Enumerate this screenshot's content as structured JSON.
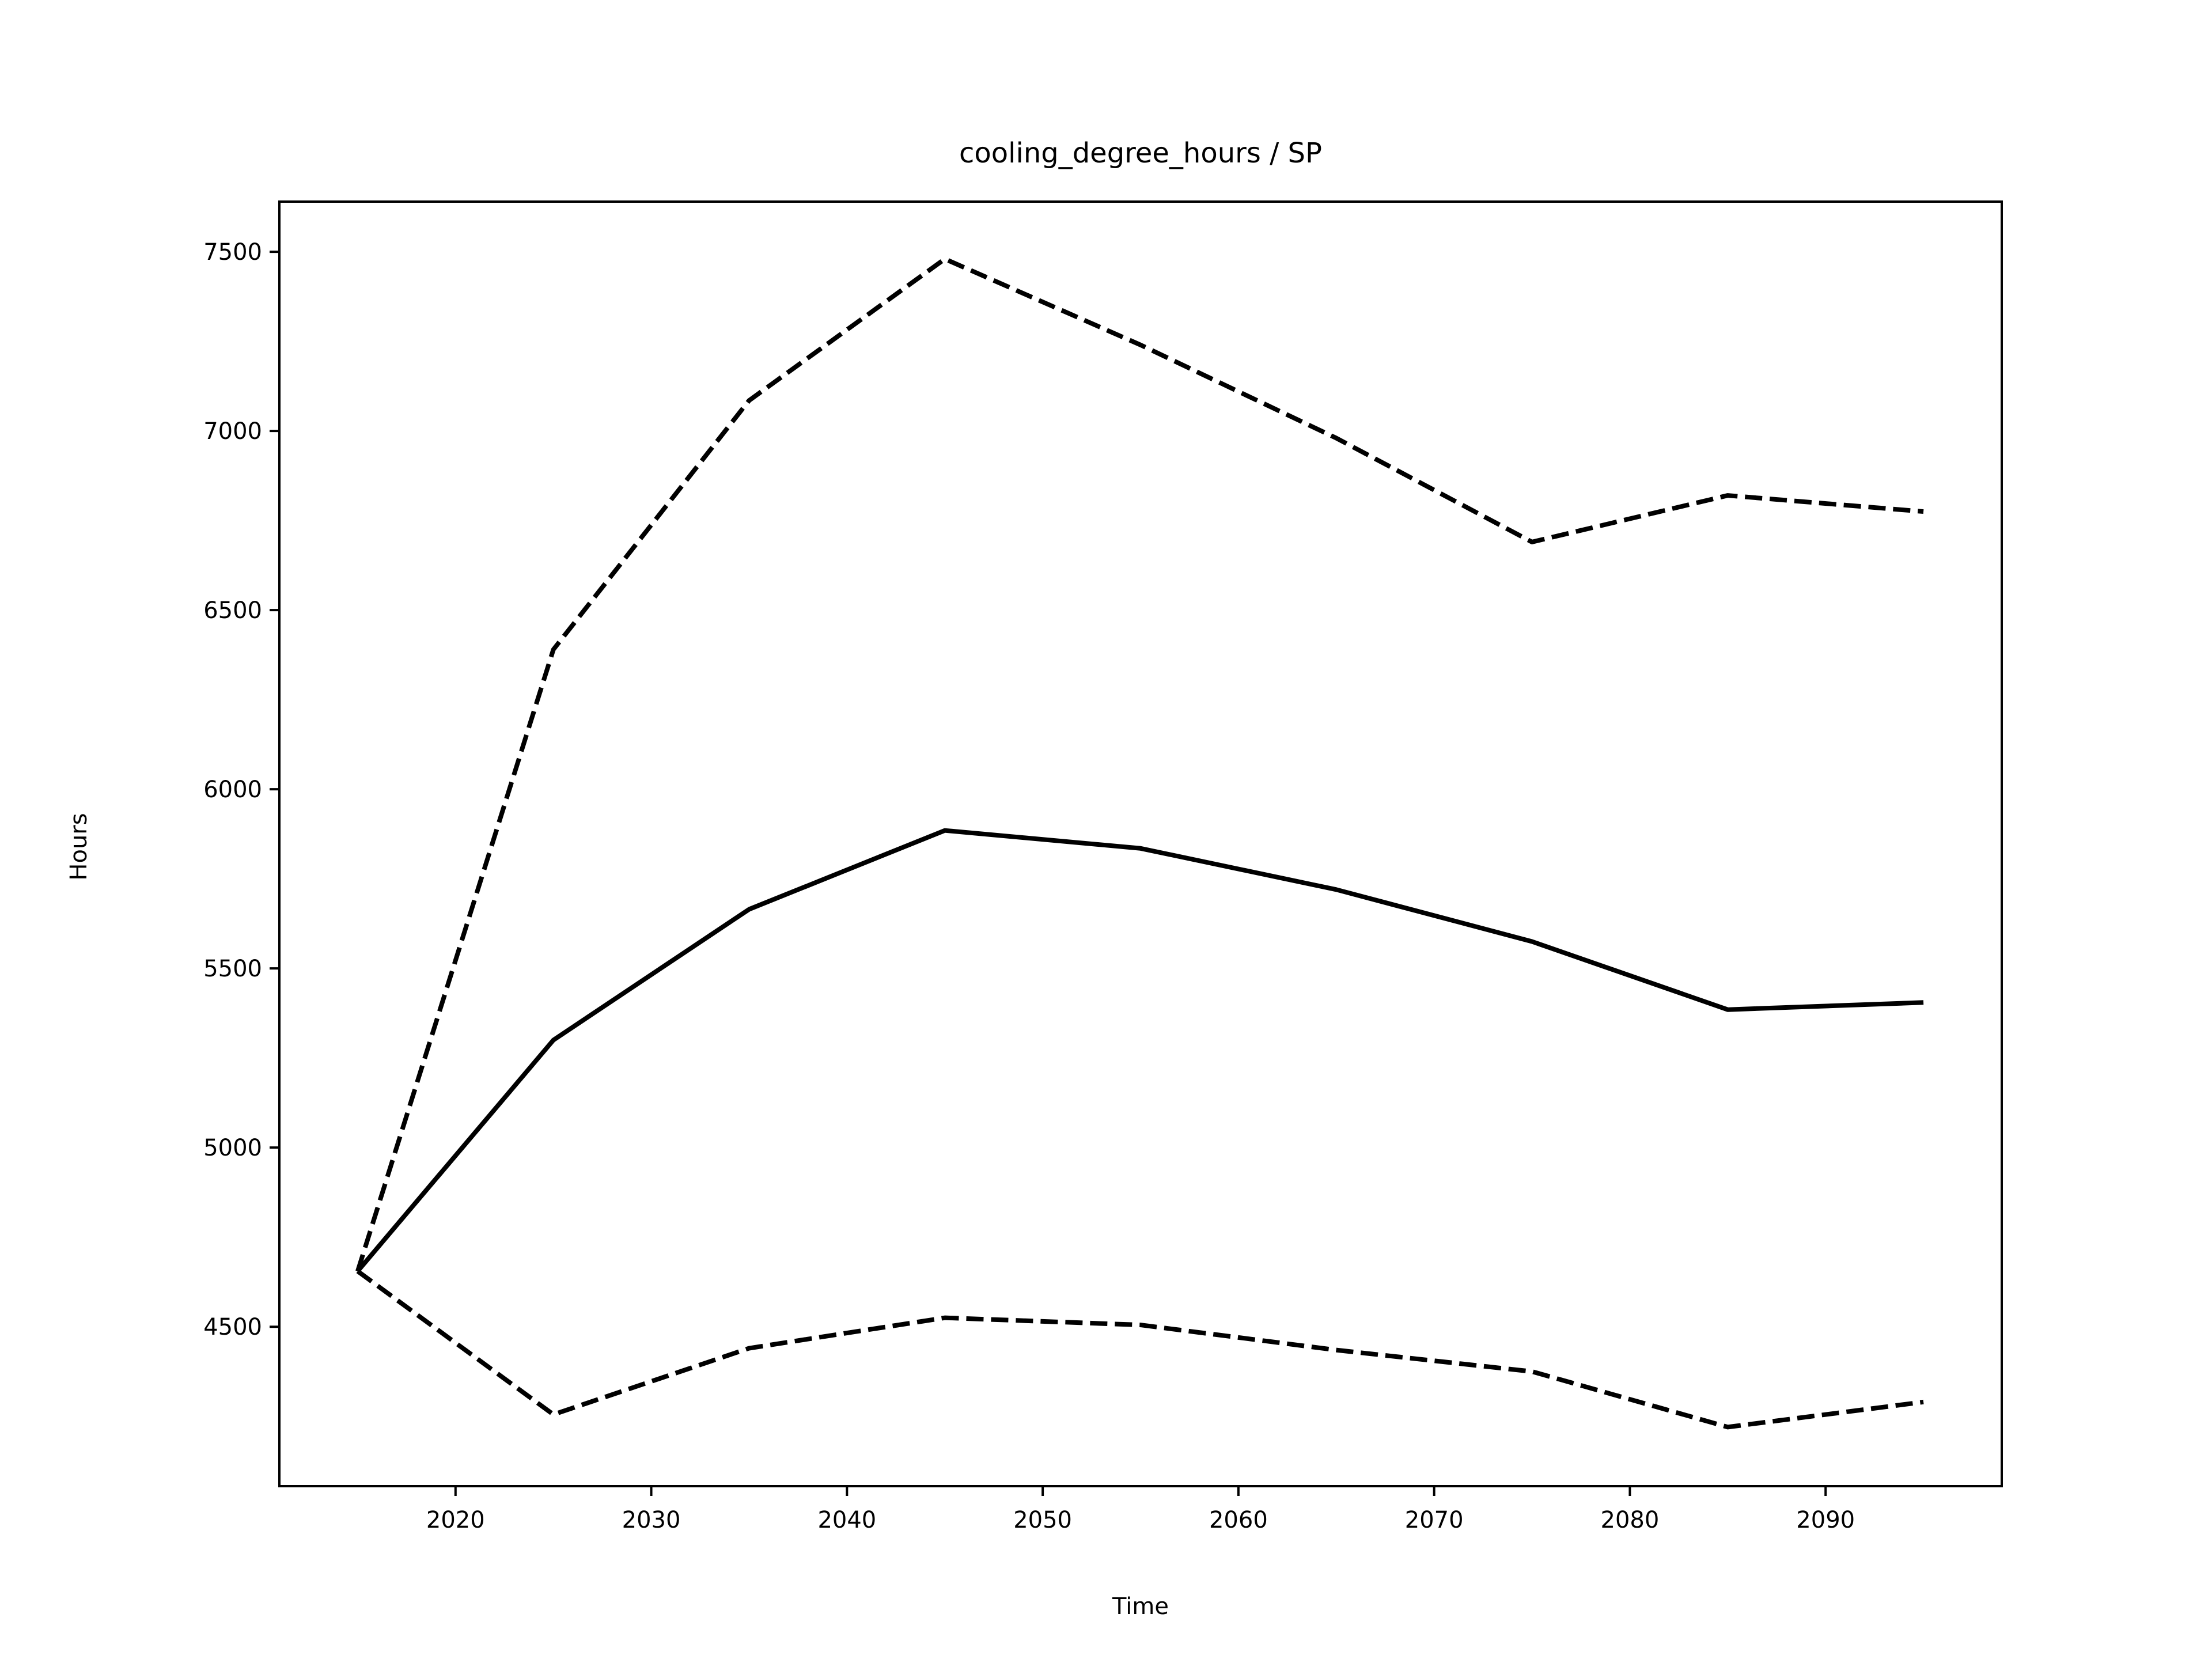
{
  "chart_data": {
    "type": "line",
    "title": "cooling_degree_hours / SP",
    "xlabel": "Time",
    "ylabel": "Hours",
    "xlim": [
      2011,
      2099
    ],
    "ylim": [
      4055,
      7640
    ],
    "x_ticks": [
      2020,
      2030,
      2040,
      2050,
      2060,
      2070,
      2080,
      2090
    ],
    "y_ticks": [
      4500,
      5000,
      5500,
      6000,
      6500,
      7000,
      7500
    ],
    "grid": false,
    "x": [
      2015,
      2025,
      2035,
      2045,
      2055,
      2065,
      2075,
      2085,
      2095
    ],
    "series": [
      {
        "style": "dashed",
        "values": [
          4655,
          6390,
          7085,
          7480,
          7240,
          6980,
          6690,
          6820,
          6775
        ]
      },
      {
        "style": "solid",
        "values": [
          4655,
          5300,
          5665,
          5885,
          5835,
          5720,
          5575,
          5385,
          5405
        ]
      },
      {
        "style": "dashed",
        "values": [
          4655,
          4255,
          4440,
          4525,
          4505,
          4435,
          4375,
          4220,
          4290
        ]
      }
    ],
    "line_color": "#000000"
  }
}
